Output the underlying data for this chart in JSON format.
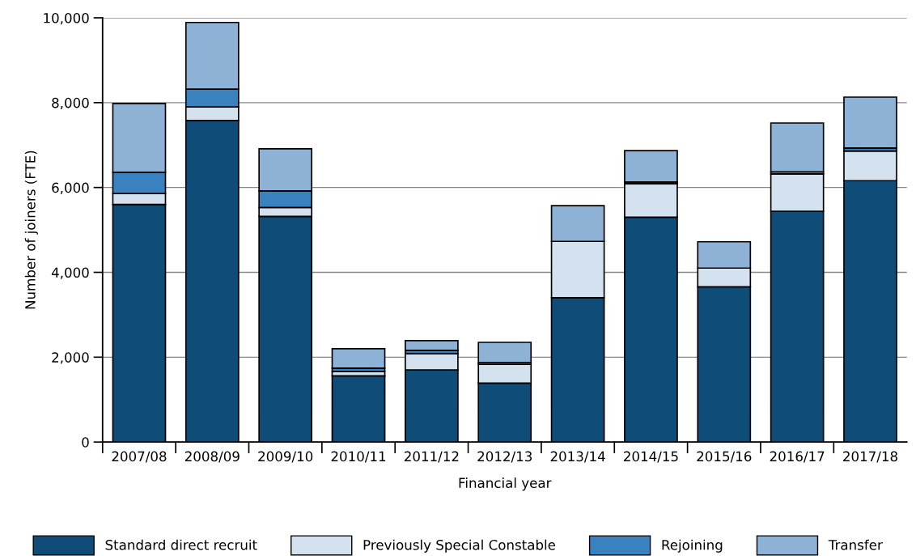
{
  "chart_data": {
    "type": "bar",
    "stacked": true,
    "xlabel": "Financial year",
    "ylabel": "Number of joiners (FTE)",
    "categories": [
      "2007/08",
      "2008/09",
      "2009/10",
      "2010/11",
      "2011/12",
      "2012/13",
      "2013/14",
      "2014/15",
      "2015/16",
      "2016/17",
      "2017/18"
    ],
    "series": [
      {
        "name": "Standard direct recruit",
        "color": "#0f4c78",
        "values": [
          5600,
          7580,
          5320,
          1560,
          1700,
          1390,
          3400,
          5300,
          3660,
          5440,
          6160
        ]
      },
      {
        "name": "Previously Special Constable",
        "color": "#d4e1ee",
        "values": [
          260,
          320,
          210,
          100,
          380,
          440,
          1330,
          790,
          440,
          880,
          700
        ]
      },
      {
        "name": "Rejoining",
        "color": "#3a82bf",
        "values": [
          500,
          420,
          390,
          80,
          80,
          40,
          null,
          40,
          null,
          50,
          70
        ]
      },
      {
        "name": "Transfer",
        "color": "#8db2d6",
        "values": [
          1620,
          1570,
          990,
          460,
          230,
          480,
          840,
          740,
          620,
          1150,
          1200
        ]
      }
    ],
    "ylim": [
      0,
      10000
    ],
    "yticks": [
      0,
      {
        "value": 2000,
        "label": "2,000"
      },
      {
        "value": 4000,
        "label": "4,000"
      },
      {
        "value": 6000,
        "label": "6,000"
      },
      {
        "value": 8000,
        "label": "8,000"
      },
      {
        "value": 10000,
        "label": "10,000"
      }
    ],
    "grid": "y",
    "legend": "bottom"
  }
}
